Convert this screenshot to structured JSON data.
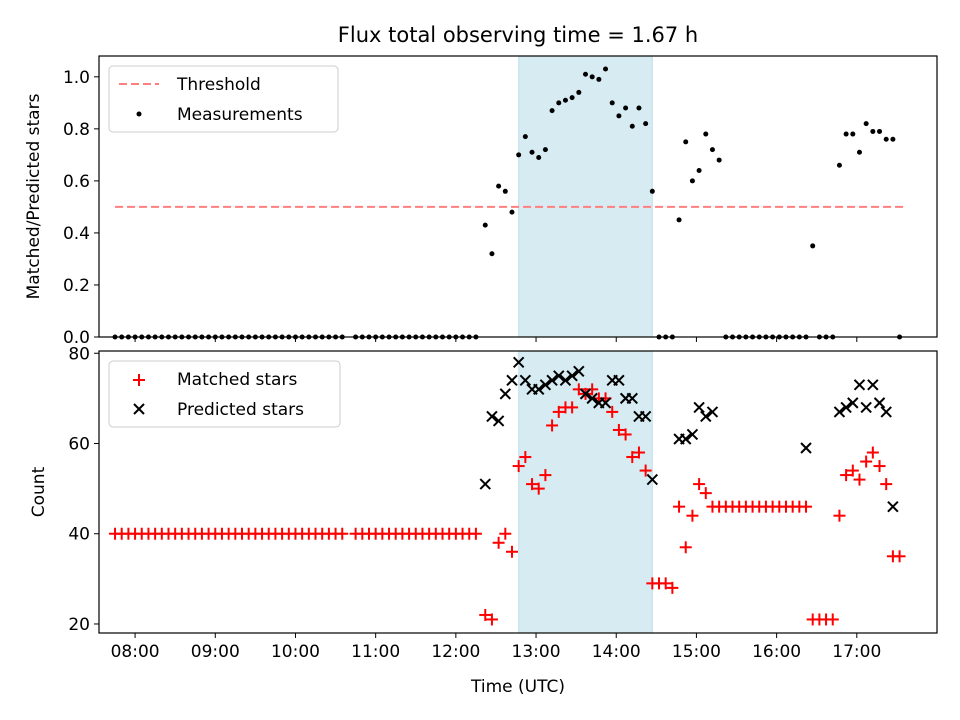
{
  "chart_data": [
    {
      "type": "scatter",
      "title": "Flux total observing time = 1.67 h",
      "xlabel": "",
      "ylabel": "Matched/Predicted stars",
      "xlim": [
        "07:33",
        "18:00"
      ],
      "ylim": [
        0,
        1.08
      ],
      "yticks": [
        0.0,
        0.2,
        0.4,
        0.6,
        0.8,
        1.0
      ],
      "ytick_labels": [
        "0.0",
        "0.2",
        "0.4",
        "0.6",
        "0.8",
        "1.0"
      ],
      "legend_position": "upper-left",
      "shaded_span": {
        "x": [
          "12:47",
          "14:27"
        ],
        "color": "#add8e6"
      },
      "series": [
        {
          "name": "Threshold",
          "style": "dashed-line",
          "color": "#ff7f7f",
          "x": [
            "07:45",
            "17:35"
          ],
          "y": [
            0.5,
            0.5
          ]
        },
        {
          "name": "Measurements",
          "style": "dot",
          "color": "#000000",
          "x": [
            "07:45",
            "07:50",
            "07:55",
            "08:00",
            "08:05",
            "08:10",
            "08:15",
            "08:20",
            "08:25",
            "08:30",
            "08:35",
            "08:40",
            "08:45",
            "08:50",
            "08:55",
            "09:00",
            "09:05",
            "09:10",
            "09:15",
            "09:20",
            "09:25",
            "09:30",
            "09:35",
            "09:40",
            "09:45",
            "09:50",
            "09:55",
            "10:00",
            "10:05",
            "10:10",
            "10:15",
            "10:20",
            "10:25",
            "10:30",
            "10:35",
            "10:45",
            "10:50",
            "10:55",
            "11:00",
            "11:05",
            "11:10",
            "11:15",
            "11:20",
            "11:25",
            "11:30",
            "11:35",
            "11:40",
            "11:45",
            "11:50",
            "11:55",
            "12:00",
            "12:05",
            "12:10",
            "12:15",
            "12:22",
            "12:27",
            "12:32",
            "12:37",
            "12:42",
            "12:47",
            "12:52",
            "12:57",
            "13:02",
            "13:07",
            "13:12",
            "13:17",
            "13:22",
            "13:27",
            "13:32",
            "13:37",
            "13:42",
            "13:47",
            "13:52",
            "13:57",
            "14:02",
            "14:07",
            "14:12",
            "14:17",
            "14:22",
            "14:27",
            "14:32",
            "14:37",
            "14:42",
            "14:47",
            "14:52",
            "14:57",
            "15:02",
            "15:07",
            "15:12",
            "15:17",
            "15:22",
            "15:27",
            "15:32",
            "15:37",
            "15:42",
            "15:47",
            "15:52",
            "15:57",
            "16:02",
            "16:07",
            "16:12",
            "16:17",
            "16:22",
            "16:27",
            "16:32",
            "16:37",
            "16:42",
            "16:47",
            "16:52",
            "16:57",
            "17:02",
            "17:07",
            "17:12",
            "17:17",
            "17:22",
            "17:27",
            "17:32"
          ],
          "y": [
            0,
            0,
            0,
            0,
            0,
            0,
            0,
            0,
            0,
            0,
            0,
            0,
            0,
            0,
            0,
            0,
            0,
            0,
            0,
            0,
            0,
            0,
            0,
            0,
            0,
            0,
            0,
            0,
            0,
            0,
            0,
            0,
            0,
            0,
            0,
            0,
            0,
            0,
            0,
            0,
            0,
            0,
            0,
            0,
            0,
            0,
            0,
            0,
            0,
            0,
            0,
            0,
            0,
            0,
            0.43,
            0.32,
            0.58,
            0.56,
            0.48,
            0.7,
            0.77,
            0.71,
            0.69,
            0.72,
            0.87,
            0.9,
            0.91,
            0.92,
            0.94,
            1.01,
            1.0,
            0.99,
            1.03,
            0.9,
            0.85,
            0.88,
            0.81,
            0.88,
            0.82,
            0.56,
            0,
            0,
            0,
            0.45,
            0.75,
            0.6,
            0.64,
            0.78,
            0.72,
            0.68,
            0,
            0,
            0,
            0,
            0,
            0,
            0,
            0,
            0,
            0,
            0,
            0,
            0,
            0.35,
            0,
            0,
            0,
            0.66,
            0.78,
            0.78,
            0.71,
            0.82,
            0.79,
            0.79,
            0.76,
            0.76,
            0
          ]
        }
      ]
    },
    {
      "type": "scatter",
      "title": "",
      "xlabel": "Time (UTC)",
      "ylabel": "Count",
      "xlim": [
        "07:33",
        "18:00"
      ],
      "ylim": [
        18,
        80.5
      ],
      "yticks": [
        20,
        40,
        60,
        80
      ],
      "ytick_labels": [
        "20",
        "40",
        "60",
        "80"
      ],
      "xticks": [
        "08:00",
        "09:00",
        "10:00",
        "11:00",
        "12:00",
        "13:00",
        "14:00",
        "15:00",
        "16:00",
        "17:00"
      ],
      "legend_position": "upper-left",
      "shaded_span": {
        "x": [
          "12:47",
          "14:27"
        ],
        "color": "#add8e6"
      },
      "series": [
        {
          "name": "Matched stars",
          "style": "plus",
          "color": "#ff0000",
          "x": [
            "07:45",
            "07:50",
            "07:55",
            "08:00",
            "08:05",
            "08:10",
            "08:15",
            "08:20",
            "08:25",
            "08:30",
            "08:35",
            "08:40",
            "08:45",
            "08:50",
            "08:55",
            "09:00",
            "09:05",
            "09:10",
            "09:15",
            "09:20",
            "09:25",
            "09:30",
            "09:35",
            "09:40",
            "09:45",
            "09:50",
            "09:55",
            "10:00",
            "10:05",
            "10:10",
            "10:15",
            "10:20",
            "10:25",
            "10:30",
            "10:35",
            "10:45",
            "10:50",
            "10:55",
            "11:00",
            "11:05",
            "11:10",
            "11:15",
            "11:20",
            "11:25",
            "11:30",
            "11:35",
            "11:40",
            "11:45",
            "11:50",
            "11:55",
            "12:00",
            "12:05",
            "12:10",
            "12:15",
            "12:22",
            "12:27",
            "12:32",
            "12:37",
            "12:42",
            "12:47",
            "12:52",
            "12:57",
            "13:02",
            "13:07",
            "13:12",
            "13:17",
            "13:22",
            "13:27",
            "13:32",
            "13:37",
            "13:42",
            "13:47",
            "13:52",
            "13:57",
            "14:02",
            "14:07",
            "14:12",
            "14:17",
            "14:22",
            "14:27",
            "14:32",
            "14:37",
            "14:42",
            "14:47",
            "14:52",
            "14:57",
            "15:02",
            "15:07",
            "15:12",
            "15:17",
            "15:22",
            "15:27",
            "15:32",
            "15:37",
            "15:42",
            "15:47",
            "15:52",
            "15:57",
            "16:02",
            "16:07",
            "16:12",
            "16:17",
            "16:22",
            "16:27",
            "16:32",
            "16:37",
            "16:42",
            "16:47",
            "16:52",
            "16:57",
            "17:02",
            "17:07",
            "17:12",
            "17:17",
            "17:22",
            "17:27",
            "17:32"
          ],
          "y": [
            40,
            40,
            40,
            40,
            40,
            40,
            40,
            40,
            40,
            40,
            40,
            40,
            40,
            40,
            40,
            40,
            40,
            40,
            40,
            40,
            40,
            40,
            40,
            40,
            40,
            40,
            40,
            40,
            40,
            40,
            40,
            40,
            40,
            40,
            40,
            40,
            40,
            40,
            40,
            40,
            40,
            40,
            40,
            40,
            40,
            40,
            40,
            40,
            40,
            40,
            40,
            40,
            40,
            40,
            22,
            21,
            38,
            40,
            36,
            55,
            57,
            51,
            50,
            53,
            64,
            67,
            68,
            68,
            72,
            71,
            72,
            70,
            70,
            67,
            63,
            62,
            57,
            58,
            54,
            29,
            29,
            29,
            28,
            46,
            37,
            44,
            51,
            49,
            46,
            46,
            46,
            46,
            46,
            46,
            46,
            46,
            46,
            46,
            46,
            46,
            46,
            46,
            46,
            21,
            21,
            21,
            21,
            44,
            53,
            54,
            52,
            56,
            58,
            55,
            51,
            35,
            35
          ]
        },
        {
          "name": "Predicted stars",
          "style": "x",
          "color": "#000000",
          "x": [
            "12:22",
            "12:27",
            "12:32",
            "12:37",
            "12:42",
            "12:47",
            "12:52",
            "12:57",
            "13:02",
            "13:07",
            "13:12",
            "13:17",
            "13:22",
            "13:27",
            "13:32",
            "13:37",
            "13:42",
            "13:47",
            "13:52",
            "13:57",
            "14:02",
            "14:07",
            "14:12",
            "14:17",
            "14:22",
            "14:27",
            "14:47",
            "14:52",
            "14:57",
            "15:02",
            "15:07",
            "15:12",
            "16:22",
            "16:47",
            "16:52",
            "16:57",
            "17:02",
            "17:07",
            "17:12",
            "17:17",
            "17:22",
            "17:27"
          ],
          "y": [
            51,
            66,
            65,
            71,
            74,
            78,
            74,
            72,
            72,
            73,
            74,
            75,
            74,
            75,
            76,
            71,
            70,
            69,
            69,
            74,
            74,
            70,
            70,
            66,
            66,
            52,
            61,
            61,
            62,
            68,
            66,
            67,
            59,
            67,
            68,
            69,
            73,
            68,
            73,
            69,
            67,
            46
          ]
        }
      ]
    }
  ]
}
